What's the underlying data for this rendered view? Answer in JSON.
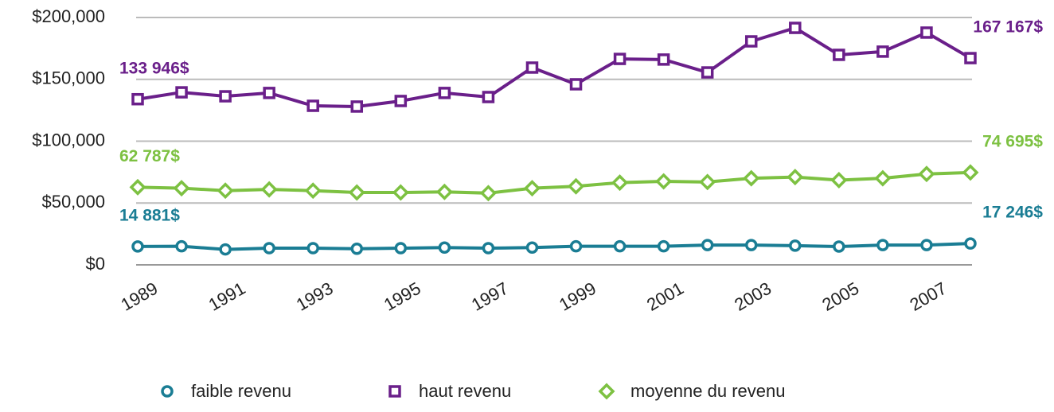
{
  "chart_data": {
    "type": "line",
    "categories": [
      "1989",
      null,
      "1991",
      null,
      "1993",
      null,
      "1995",
      null,
      "1997",
      null,
      "1999",
      null,
      "2001",
      null,
      "2003",
      null,
      "2005",
      null,
      "2007",
      null
    ],
    "series": [
      {
        "name": "faible revenu",
        "color": "#1a7d94",
        "marker": "circle",
        "values": [
          14881,
          15000,
          12500,
          13500,
          13500,
          13000,
          13500,
          14000,
          13500,
          14000,
          15000,
          15000,
          15000,
          16000,
          16000,
          15500,
          14800,
          16000,
          16000,
          17246
        ],
        "value_labels": [
          "14 881$",
          null,
          null,
          null,
          null,
          null,
          null,
          null,
          null,
          null,
          null,
          null,
          null,
          null,
          null,
          null,
          null,
          null,
          null,
          "17 246$"
        ]
      },
      {
        "name": "haut revenu",
        "color": "#6a1f8a",
        "marker": "square",
        "values": [
          133946,
          139500,
          136300,
          139000,
          128600,
          128000,
          132500,
          139000,
          135700,
          159500,
          146000,
          166500,
          166000,
          155600,
          180700,
          191600,
          169800,
          172400,
          187800,
          167167
        ],
        "value_labels": [
          "133 946$",
          null,
          null,
          null,
          null,
          null,
          null,
          null,
          null,
          null,
          null,
          null,
          null,
          null,
          null,
          null,
          null,
          null,
          null,
          "167 167$"
        ]
      },
      {
        "name": "moyenne du revenu",
        "color": "#7dc142",
        "marker": "diamond",
        "values": [
          62787,
          62000,
          60000,
          61000,
          60000,
          58500,
          58500,
          59000,
          58000,
          62000,
          63500,
          66500,
          67500,
          67000,
          70000,
          71000,
          68500,
          70000,
          73500,
          74695
        ],
        "value_labels": [
          "62 787$",
          null,
          null,
          null,
          null,
          null,
          null,
          null,
          null,
          null,
          null,
          null,
          null,
          null,
          null,
          null,
          null,
          null,
          null,
          "74 695$"
        ]
      }
    ],
    "ylim": [
      0,
      200000
    ],
    "yticks": [
      {
        "value": 0,
        "label": "$0"
      },
      {
        "value": 50000,
        "label": "$50,000"
      },
      {
        "value": 100000,
        "label": "$100,000"
      },
      {
        "value": 150000,
        "label": "$150,000"
      },
      {
        "value": 200000,
        "label": "$200,000"
      }
    ],
    "grid": true,
    "legend": "bottom"
  }
}
